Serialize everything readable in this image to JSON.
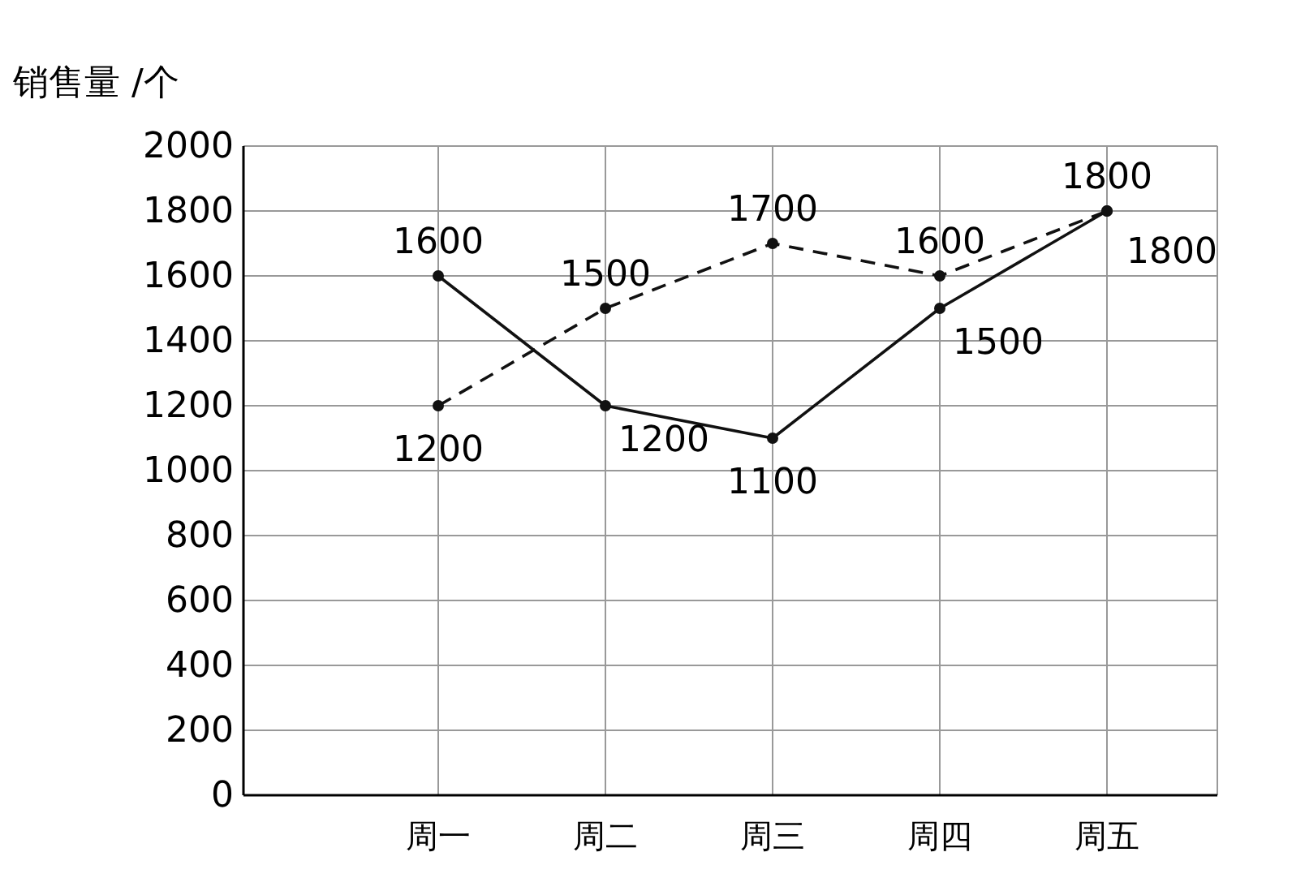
{
  "chart_data": {
    "type": "line",
    "ylabel": "销售量 /个",
    "categories": [
      "周一",
      "周二",
      "周三",
      "周四",
      "周五"
    ],
    "series": [
      {
        "color": "#111111",
        "values": [
          1600,
          1200,
          1100,
          1500,
          1800
        ],
        "line_style": "solid"
      },
      {
        "color": "#111111",
        "values": [
          1200,
          1500,
          1700,
          1600,
          1800
        ],
        "line_style": "dashed"
      }
    ],
    "ylim": [
      0,
      2000
    ],
    "yticks": [
      0,
      200,
      400,
      600,
      800,
      1000,
      1200,
      1400,
      1600,
      1800,
      2000
    ],
    "grid": true,
    "marker": "circle",
    "data_labels": true
  }
}
